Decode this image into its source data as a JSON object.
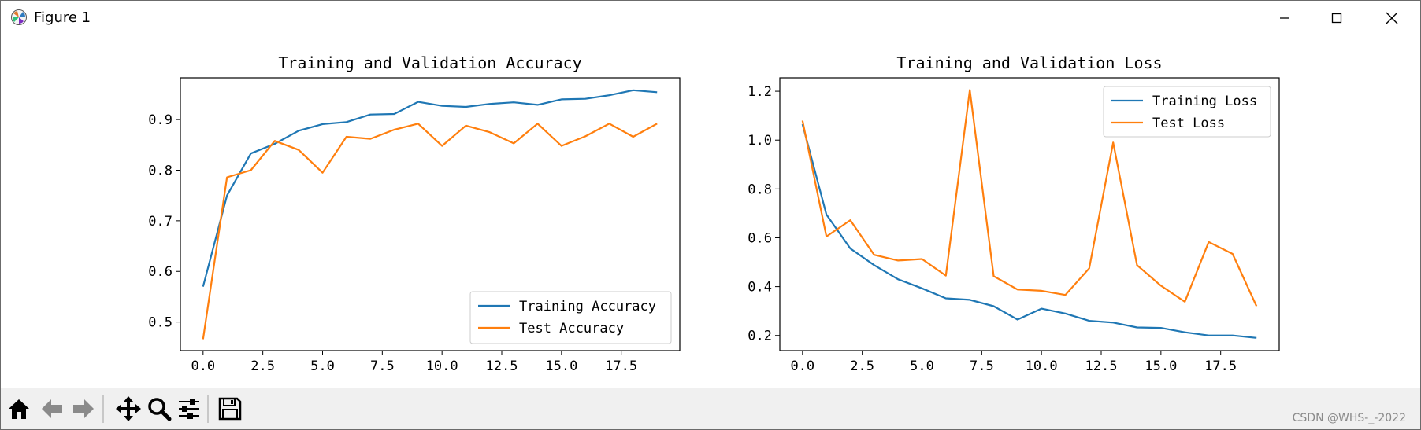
{
  "window": {
    "title": "Figure 1"
  },
  "toolbar": {
    "buttons": [
      "home-icon",
      "back-icon",
      "forward-icon",
      "pan-icon",
      "zoom-icon",
      "configure-subplots-icon",
      "save-icon"
    ]
  },
  "watermark": "CSDN @WHS-_-2022",
  "colors": {
    "training": "#1f77b4",
    "test": "#ff7f0e"
  },
  "chart_data": [
    {
      "type": "line",
      "title": "Training and Validation Accuracy",
      "xlabel": "",
      "ylabel": "",
      "xlim": [
        -0.95,
        19.95
      ],
      "ylim": [
        0.4435,
        0.9825
      ],
      "xticks": [
        0,
        2.5,
        5,
        7.5,
        10,
        12.5,
        15,
        17.5
      ],
      "xtick_labels": [
        "0.0",
        "2.5",
        "5.0",
        "7.5",
        "10.0",
        "12.5",
        "15.0",
        "17.5"
      ],
      "yticks": [
        0.5,
        0.6,
        0.7,
        0.8,
        0.9
      ],
      "ytick_labels": [
        "0.5",
        "0.6",
        "0.7",
        "0.8",
        "0.9"
      ],
      "legend_loc": "lower-right",
      "x": [
        0,
        1,
        2,
        3,
        4,
        5,
        6,
        7,
        8,
        9,
        10,
        11,
        12,
        13,
        14,
        15,
        16,
        17,
        18,
        19
      ],
      "series": [
        {
          "name": "Training Accuracy",
          "color": "#1f77b4",
          "values": [
            0.57,
            0.75,
            0.833,
            0.852,
            0.878,
            0.891,
            0.895,
            0.91,
            0.911,
            0.935,
            0.927,
            0.925,
            0.931,
            0.934,
            0.929,
            0.94,
            0.941,
            0.948,
            0.958,
            0.954
          ]
        },
        {
          "name": "Test Accuracy",
          "color": "#ff7f0e",
          "values": [
            0.466,
            0.786,
            0.8,
            0.858,
            0.84,
            0.795,
            0.866,
            0.862,
            0.88,
            0.892,
            0.848,
            0.888,
            0.875,
            0.853,
            0.892,
            0.848,
            0.867,
            0.892,
            0.866,
            0.892
          ]
        }
      ]
    },
    {
      "type": "line",
      "title": "Training and Validation Loss",
      "xlabel": "",
      "ylabel": "",
      "xlim": [
        -0.95,
        19.95
      ],
      "ylim": [
        0.138,
        1.255
      ],
      "xticks": [
        0,
        2.5,
        5,
        7.5,
        10,
        12.5,
        15,
        17.5
      ],
      "xtick_labels": [
        "0.0",
        "2.5",
        "5.0",
        "7.5",
        "10.0",
        "12.5",
        "15.0",
        "17.5"
      ],
      "yticks": [
        0.2,
        0.4,
        0.6,
        0.8,
        1.0,
        1.2
      ],
      "ytick_labels": [
        "0.2",
        "0.4",
        "0.6",
        "0.8",
        "1.0",
        "1.2"
      ],
      "legend_loc": "upper-right",
      "x": [
        0,
        1,
        2,
        3,
        4,
        5,
        6,
        7,
        8,
        9,
        10,
        11,
        12,
        13,
        14,
        15,
        16,
        17,
        18,
        19
      ],
      "series": [
        {
          "name": "Training Loss",
          "color": "#1f77b4",
          "values": [
            1.065,
            0.695,
            0.556,
            0.488,
            0.43,
            0.393,
            0.352,
            0.346,
            0.32,
            0.265,
            0.31,
            0.29,
            0.26,
            0.253,
            0.233,
            0.231,
            0.213,
            0.2,
            0.2,
            0.19
          ]
        },
        {
          "name": "Test Loss",
          "color": "#ff7f0e",
          "values": [
            1.08,
            0.605,
            0.672,
            0.53,
            0.507,
            0.513,
            0.445,
            1.205,
            0.443,
            0.388,
            0.383,
            0.366,
            0.475,
            0.99,
            0.488,
            0.404,
            0.338,
            0.583,
            0.534,
            0.32
          ]
        }
      ]
    }
  ]
}
